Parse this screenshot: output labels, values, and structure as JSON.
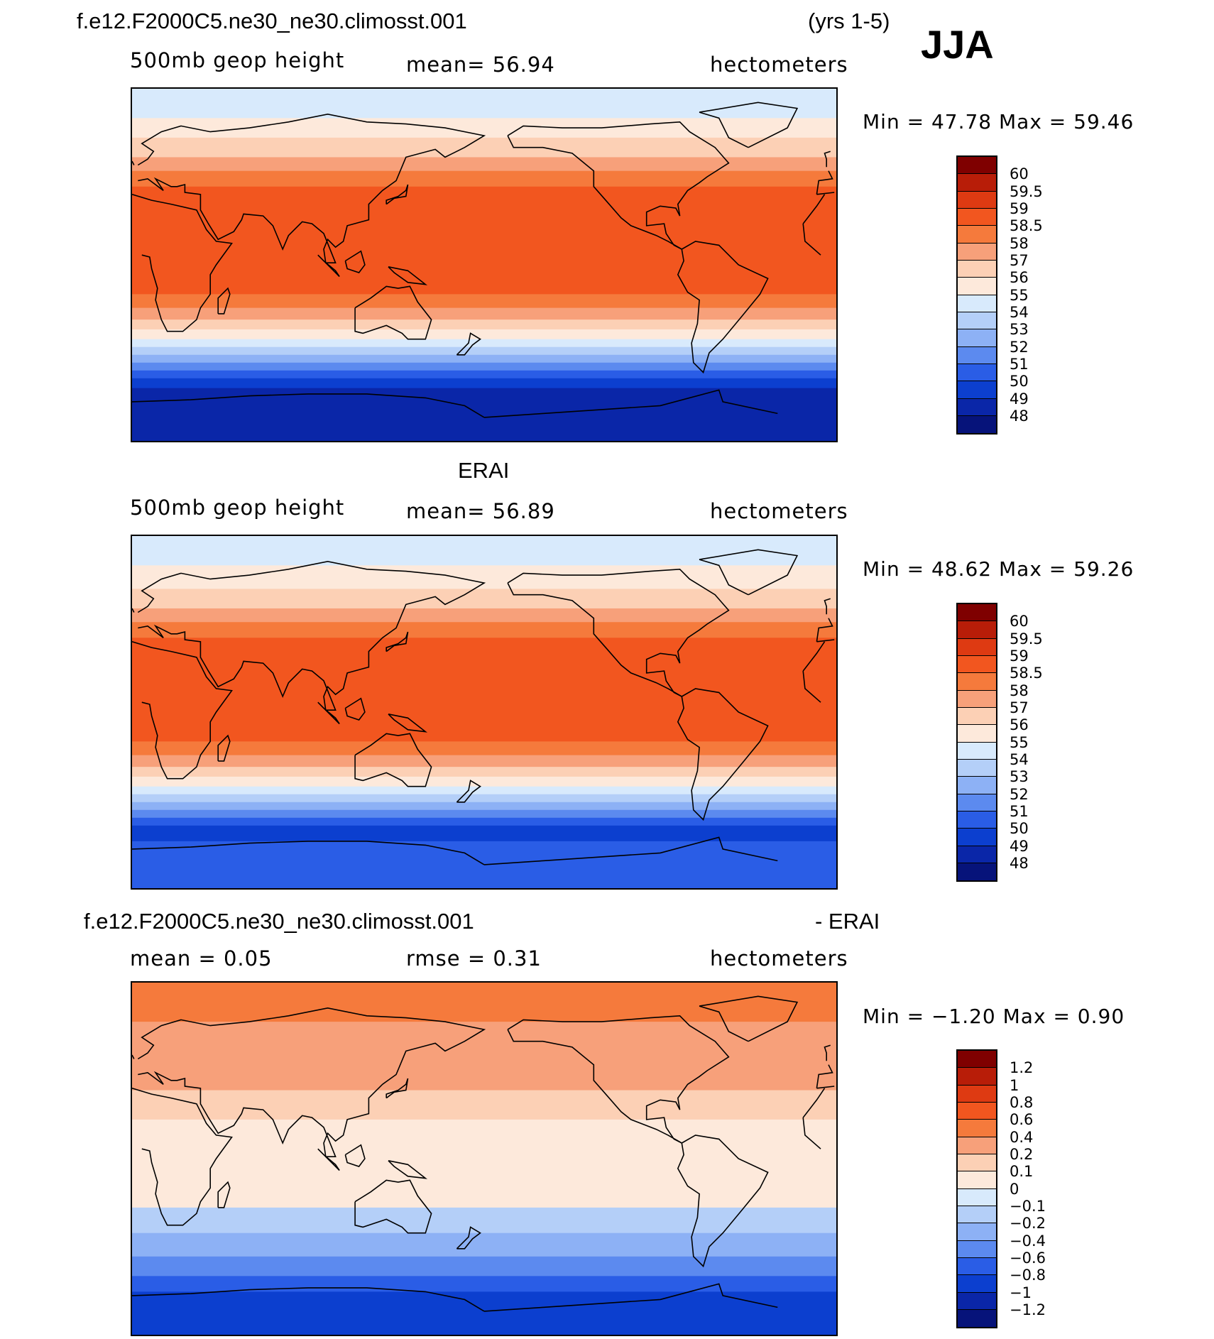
{
  "header": {
    "case_name": "f.e12.F2000C5.ne30_ne30.climosst.001",
    "years": "(yrs 1-5)",
    "season": "JJA"
  },
  "panels": [
    {
      "id": "model",
      "title": "",
      "left_label": "500mb  geop  height",
      "center_label": "mean=   56.94",
      "units": "hectometers",
      "min_max": "Min  =   47.78  Max  =   59.46",
      "colorbar": {
        "labels": [
          "60",
          "59.5",
          "59",
          "58.5",
          "58",
          "57",
          "56",
          "55",
          "54",
          "53",
          "52",
          "51",
          "50",
          "49",
          "48"
        ],
        "colors": [
          "#7f0000",
          "#b81d08",
          "#de3a12",
          "#f2561f",
          "#f57a3c",
          "#f7a07a",
          "#fcd0b5",
          "#fde9db",
          "#d8eafc",
          "#b4cff8",
          "#8db1f5",
          "#5c8aef",
          "#2a5de6",
          "#0c3fcf",
          "#0a26a8",
          "#06137a"
        ]
      },
      "field": {
        "min": 47.78,
        "max": 59.46,
        "lat_bands": [
          {
            "lat_top": 90,
            "lat_bottom": 75,
            "value": 54.5
          },
          {
            "lat_top": 75,
            "lat_bottom": 65,
            "value": 55.5
          },
          {
            "lat_top": 65,
            "lat_bottom": 55,
            "value": 56.5
          },
          {
            "lat_top": 55,
            "lat_bottom": 48,
            "value": 57.5
          },
          {
            "lat_top": 48,
            "lat_bottom": 40,
            "value": 58.25
          },
          {
            "lat_top": 40,
            "lat_bottom": -15,
            "value": 58.75
          },
          {
            "lat_top": -15,
            "lat_bottom": -22,
            "value": 58.25
          },
          {
            "lat_top": -22,
            "lat_bottom": -28,
            "value": 57.5
          },
          {
            "lat_top": -28,
            "lat_bottom": -33,
            "value": 56.5
          },
          {
            "lat_top": -33,
            "lat_bottom": -38,
            "value": 55.5
          },
          {
            "lat_top": -38,
            "lat_bottom": -42,
            "value": 54.5
          },
          {
            "lat_top": -42,
            "lat_bottom": -46,
            "value": 53.5
          },
          {
            "lat_top": -46,
            "lat_bottom": -50,
            "value": 52.5
          },
          {
            "lat_top": -50,
            "lat_bottom": -54,
            "value": 51.5
          },
          {
            "lat_top": -54,
            "lat_bottom": -58,
            "value": 50.5
          },
          {
            "lat_top": -58,
            "lat_bottom": -63,
            "value": 49.5
          },
          {
            "lat_top": -63,
            "lat_bottom": -72,
            "value": 48.5
          },
          {
            "lat_top": -72,
            "lat_bottom": -90,
            "value": 48.25
          }
        ]
      }
    },
    {
      "id": "obs",
      "title": "ERAI",
      "left_label": "500mb  geop  height",
      "center_label": "mean=   56.89",
      "units": "hectometers",
      "min_max": "Min  =   48.62  Max  =   59.26",
      "colorbar": {
        "labels": [
          "60",
          "59.5",
          "59",
          "58.5",
          "58",
          "57",
          "56",
          "55",
          "54",
          "53",
          "52",
          "51",
          "50",
          "49",
          "48"
        ],
        "colors": [
          "#7f0000",
          "#b81d08",
          "#de3a12",
          "#f2561f",
          "#f57a3c",
          "#f7a07a",
          "#fcd0b5",
          "#fde9db",
          "#d8eafc",
          "#b4cff8",
          "#8db1f5",
          "#5c8aef",
          "#2a5de6",
          "#0c3fcf",
          "#0a26a8",
          "#06137a"
        ]
      },
      "field": {
        "min": 48.62,
        "max": 59.26,
        "lat_bands": [
          {
            "lat_top": 90,
            "lat_bottom": 75,
            "value": 54.5
          },
          {
            "lat_top": 75,
            "lat_bottom": 63,
            "value": 55.5
          },
          {
            "lat_top": 63,
            "lat_bottom": 53,
            "value": 56.5
          },
          {
            "lat_top": 53,
            "lat_bottom": 46,
            "value": 57.5
          },
          {
            "lat_top": 46,
            "lat_bottom": 38,
            "value": 58.25
          },
          {
            "lat_top": 38,
            "lat_bottom": -15,
            "value": 58.75
          },
          {
            "lat_top": -15,
            "lat_bottom": -22,
            "value": 58.25
          },
          {
            "lat_top": -22,
            "lat_bottom": -28,
            "value": 57.5
          },
          {
            "lat_top": -28,
            "lat_bottom": -33,
            "value": 56.5
          },
          {
            "lat_top": -33,
            "lat_bottom": -38,
            "value": 55.5
          },
          {
            "lat_top": -38,
            "lat_bottom": -42,
            "value": 54.5
          },
          {
            "lat_top": -42,
            "lat_bottom": -46,
            "value": 53.5
          },
          {
            "lat_top": -46,
            "lat_bottom": -50,
            "value": 52.5
          },
          {
            "lat_top": -50,
            "lat_bottom": -54,
            "value": 51.5
          },
          {
            "lat_top": -54,
            "lat_bottom": -58,
            "value": 50.5
          },
          {
            "lat_top": -58,
            "lat_bottom": -66,
            "value": 49.5
          },
          {
            "lat_top": -66,
            "lat_bottom": -90,
            "value": 50.5
          }
        ]
      }
    },
    {
      "id": "diff",
      "title_left": "f.e12.F2000C5.ne30_ne30.climosst.001",
      "title_right": "- ERAI",
      "left_label": "mean  =      0.05",
      "center_label": "rmse  =      0.31",
      "units": "hectometers",
      "min_max": "Min  =   −1.20  Max  =     0.90",
      "colorbar": {
        "labels": [
          "1.2",
          "1",
          "0.8",
          "0.6",
          "0.4",
          "0.2",
          "0.1",
          "0",
          "−0.1",
          "−0.2",
          "−0.4",
          "−0.6",
          "−0.8",
          "−1",
          "−1.2"
        ],
        "colors": [
          "#7f0000",
          "#b81d08",
          "#de3a12",
          "#f2561f",
          "#f57a3c",
          "#f7a07a",
          "#fcd0b5",
          "#fde9db",
          "#d8eafc",
          "#b4cff8",
          "#8db1f5",
          "#5c8aef",
          "#2a5de6",
          "#0c3fcf",
          "#0a26a8",
          "#06137a"
        ]
      },
      "field": {
        "min": -1.2,
        "max": 0.9,
        "lat_bands": [
          {
            "lat_top": 90,
            "lat_bottom": 70,
            "value": 0.5
          },
          {
            "lat_top": 70,
            "lat_bottom": 35,
            "value": 0.3
          },
          {
            "lat_top": 35,
            "lat_bottom": 20,
            "value": 0.15
          },
          {
            "lat_top": 20,
            "lat_bottom": -25,
            "value": 0.05
          },
          {
            "lat_top": -25,
            "lat_bottom": -38,
            "value": -0.15
          },
          {
            "lat_top": -38,
            "lat_bottom": -50,
            "value": -0.3
          },
          {
            "lat_top": -50,
            "lat_bottom": -60,
            "value": -0.5
          },
          {
            "lat_top": -60,
            "lat_bottom": -68,
            "value": -0.7
          },
          {
            "lat_top": -68,
            "lat_bottom": -90,
            "value": -0.9
          }
        ]
      }
    }
  ]
}
